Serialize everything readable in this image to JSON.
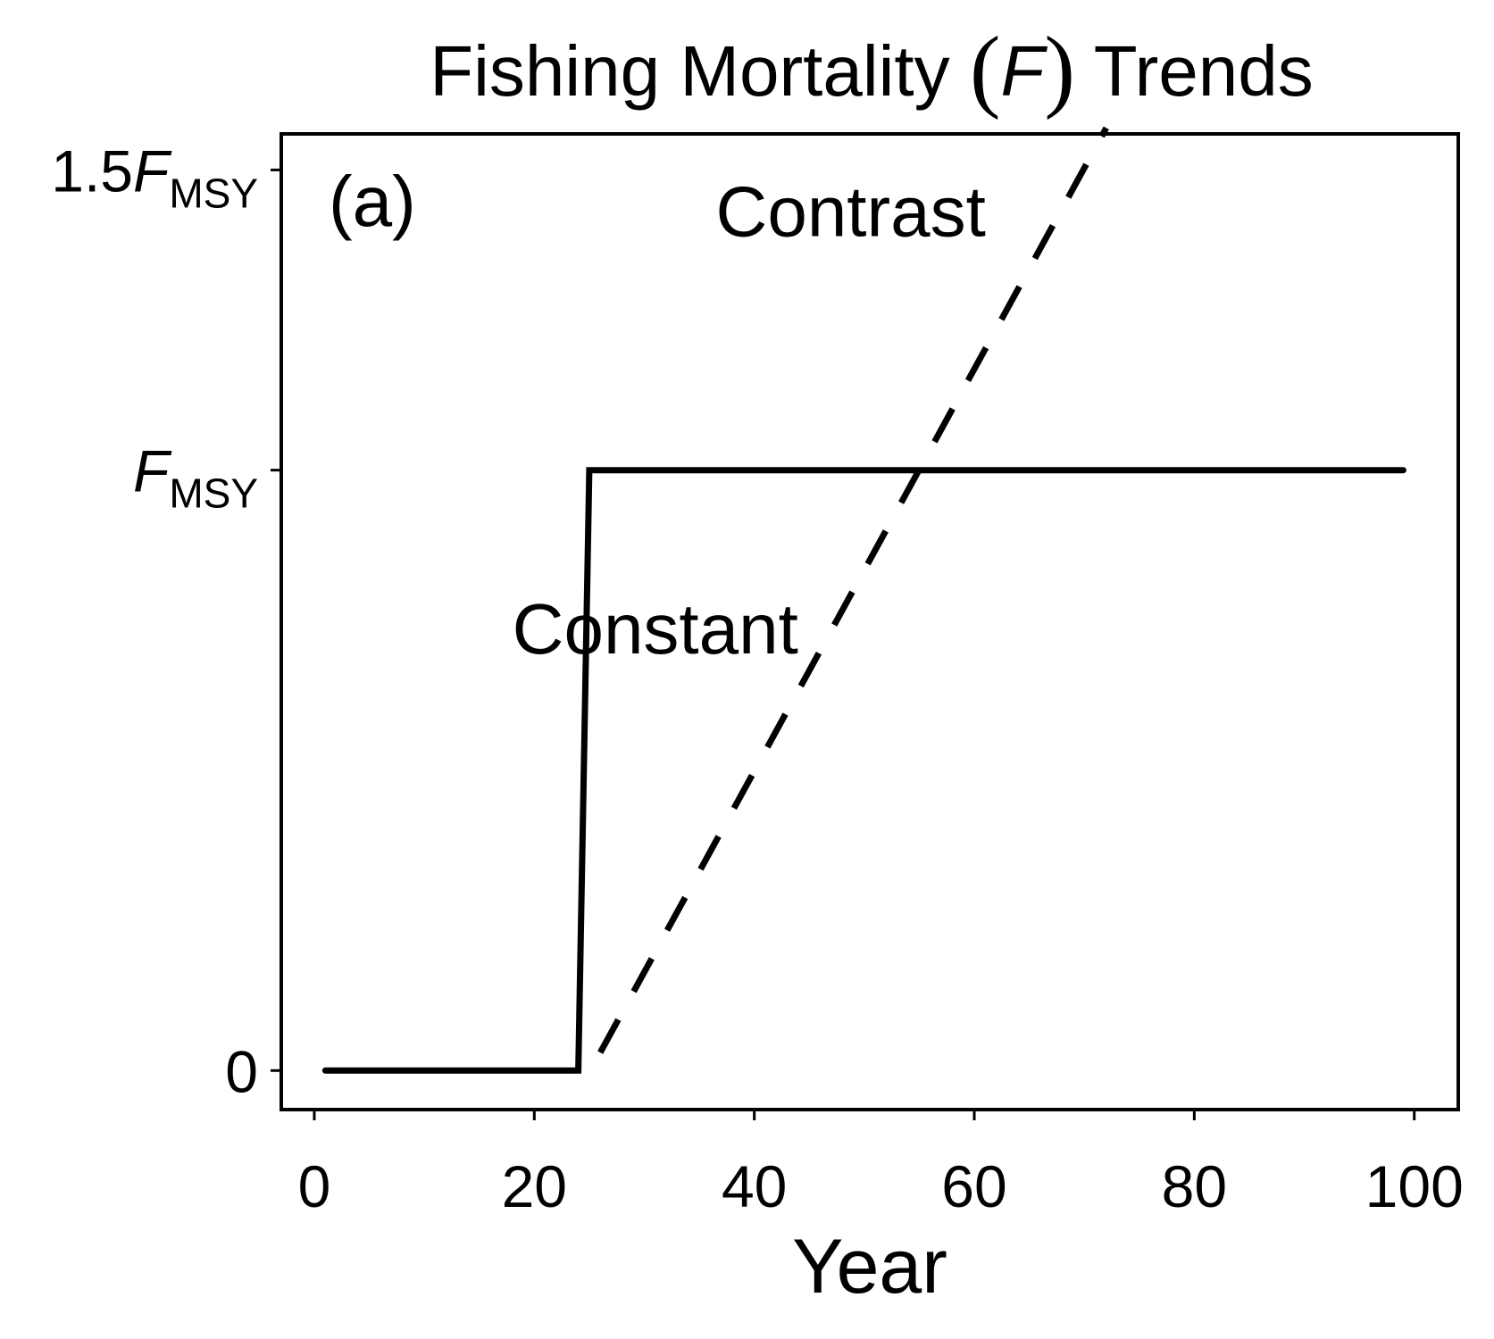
{
  "chart_data": {
    "type": "line",
    "title": {
      "prefix": "Fishing Mortality ",
      "symbol": "F",
      "suffix": " Trends"
    },
    "panel_label": "(a)",
    "xlabel": "Year",
    "ylabel": "",
    "xlim": [
      -3,
      104
    ],
    "ylim": [
      -0.065,
      1.56
    ],
    "x_ticks": [
      {
        "value": 0,
        "label": "0"
      },
      {
        "value": 20,
        "label": "20"
      },
      {
        "value": 40,
        "label": "40"
      },
      {
        "value": 60,
        "label": "60"
      },
      {
        "value": 80,
        "label": "80"
      },
      {
        "value": 100,
        "label": "100"
      }
    ],
    "y_ticks": [
      {
        "value": 0,
        "prefix": "0",
        "symbol": "",
        "sub": ""
      },
      {
        "value": 1,
        "prefix": "",
        "symbol": "F",
        "sub": "MSY"
      },
      {
        "value": 1.5,
        "prefix": "1.5",
        "symbol": "F",
        "sub": "MSY"
      }
    ],
    "series": [
      {
        "name": "Constant",
        "style": "solid",
        "color": "#000000",
        "x": [
          1,
          24,
          25,
          99
        ],
        "y": [
          0,
          0,
          1,
          1
        ]
      },
      {
        "name": "Contrast",
        "style": "dashed",
        "color": "#000000",
        "x": [
          26,
          72
        ],
        "y": [
          0.03,
          1.57
        ]
      }
    ],
    "annotations": [
      {
        "text": "Contrast",
        "x": 36.5,
        "y": 1.39
      },
      {
        "text": "Constant",
        "x": 18,
        "y": 0.695
      }
    ],
    "grid": false,
    "legend": "none"
  }
}
